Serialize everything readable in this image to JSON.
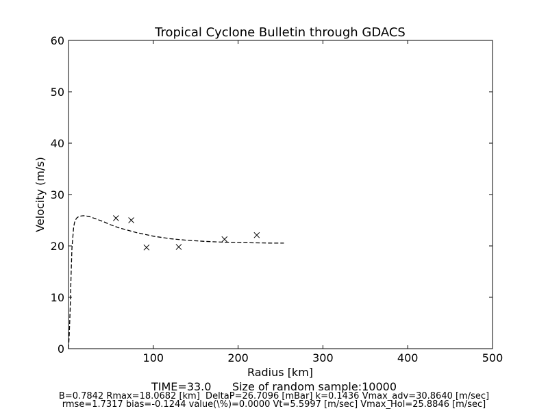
{
  "chart_data": {
    "type": "scatter",
    "title": "Tropical Cyclone Bulletin through GDACS",
    "xlabel": "Radius [km]",
    "ylabel": "Velocity (m/s)",
    "xlim": [
      0,
      500
    ],
    "ylim": [
      0,
      60
    ],
    "xticks": [
      100,
      200,
      300,
      400,
      500
    ],
    "yticks": [
      0,
      10,
      20,
      30,
      40,
      50,
      60
    ],
    "grid": false,
    "series": [
      {
        "style": "dashed-line",
        "color": "#000000",
        "x": [
          0,
          1,
          2,
          3,
          4,
          5,
          6,
          7,
          8,
          10,
          12,
          14,
          16,
          18,
          20,
          25,
          30,
          40,
          50,
          60,
          80,
          100,
          120,
          140,
          160,
          180,
          200,
          220,
          240,
          254
        ],
        "y": [
          0,
          3,
          8,
          14,
          19.5,
          21.5,
          23.5,
          24.5,
          25.0,
          25.5,
          25.7,
          25.8,
          25.85,
          25.88,
          25.85,
          25.7,
          25.4,
          24.8,
          24.1,
          23.5,
          22.6,
          21.9,
          21.4,
          21.1,
          20.9,
          20.75,
          20.65,
          20.6,
          20.55,
          20.55
        ]
      },
      {
        "style": "x-markers",
        "color": "#000000",
        "x": [
          56,
          74,
          92,
          130,
          184,
          222
        ],
        "y": [
          25.4,
          25.0,
          19.7,
          19.8,
          21.3,
          22.1
        ]
      }
    ],
    "footer": {
      "line1": "TIME=33.0      Size of random sample:10000",
      "line2": "B=0.7842 Rmax=18.0682 [km]  DeltaP=26.7096 [mBar] k=0.1436 Vmax_adv=30.8640 [m/sec]",
      "line3": "rmse=1.7317 bias=-0.1244 value(\\%)=0.0000 Vt=5.5997 [m/sec] Vmax_Hol=25.8846 [m/sec]"
    }
  }
}
